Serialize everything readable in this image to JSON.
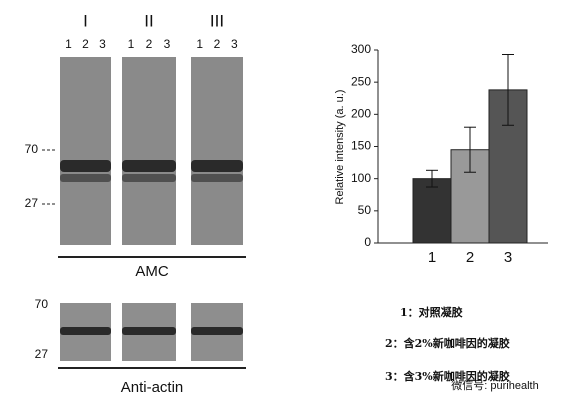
{
  "blot": {
    "groups": [
      "I",
      "II",
      "III"
    ],
    "lanes": [
      "1",
      "2",
      "3"
    ],
    "top_markers": [
      "70",
      "27"
    ],
    "top_label": "AMC",
    "bottom_markers": [
      "70",
      "27"
    ],
    "bottom_label": "Anti-actin"
  },
  "chart_data": {
    "type": "bar",
    "categories": [
      "1",
      "2",
      "3"
    ],
    "values": [
      100,
      145,
      238
    ],
    "errors": [
      13,
      35,
      55
    ],
    "colors": [
      "#333333",
      "#999999",
      "#555555"
    ],
    "y_label": "Relative intensity (a. u.)",
    "ylim": [
      0,
      300
    ],
    "yticks": [
      0,
      50,
      100,
      150,
      200,
      250,
      300
    ]
  },
  "notes": [
    "1：对照凝胶",
    "2：含2%新咖啡因的凝胶",
    "3：含3%新咖啡因的凝胶"
  ],
  "watermark": "微信号: purihealth"
}
